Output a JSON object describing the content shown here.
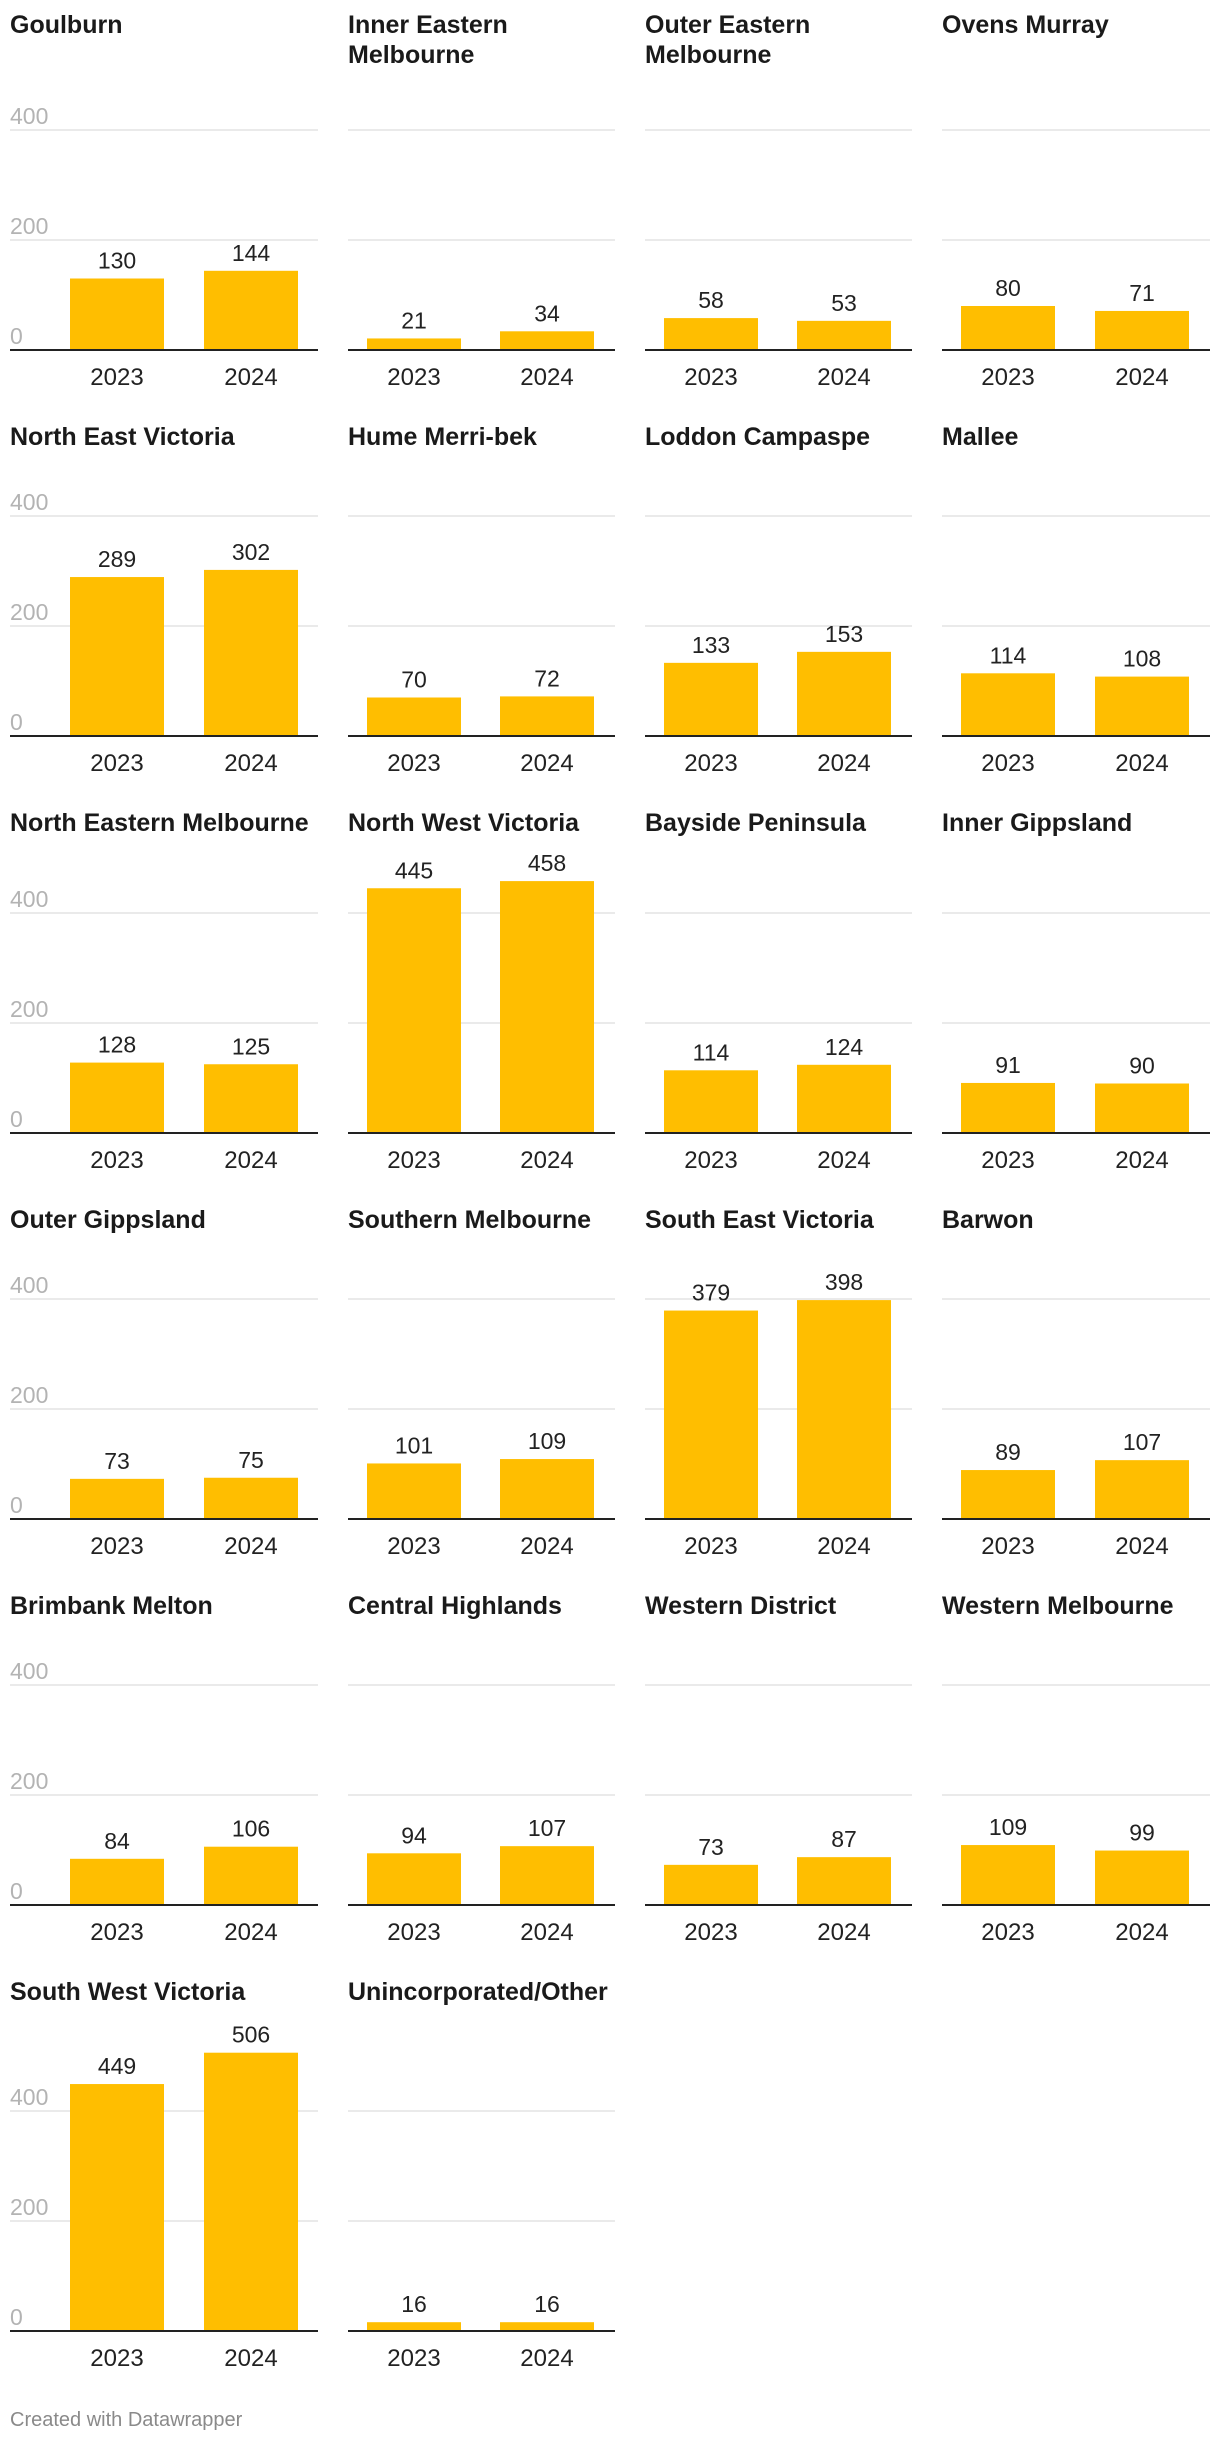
{
  "footer": {
    "credit": "Created with Datawrapper"
  },
  "colors": {
    "bar": "#FFBE00",
    "baseline": "#222222",
    "grid": "#e3e3e3",
    "tick_text": "#b3b3b3"
  },
  "chart_data": {
    "type": "bar",
    "layout": "small-multiples",
    "categories": [
      "2023",
      "2024"
    ],
    "ylim": [
      0,
      460
    ],
    "yticks": [
      0,
      200,
      400
    ],
    "grid": true,
    "panels": [
      {
        "title": "Goulburn",
        "values": [
          130,
          144
        ]
      },
      {
        "title": "Inner Eastern Melbourne",
        "title_lines": [
          "Inner Eastern",
          "Melbourne"
        ],
        "values": [
          21,
          34
        ]
      },
      {
        "title": "Outer Eastern Melbourne",
        "title_lines": [
          "Outer Eastern",
          "Melbourne"
        ],
        "values": [
          58,
          53
        ]
      },
      {
        "title": "Ovens Murray",
        "values": [
          80,
          71
        ]
      },
      {
        "title": "North East Victoria",
        "values": [
          289,
          302
        ]
      },
      {
        "title": "Hume Merri-bek",
        "values": [
          70,
          72
        ]
      },
      {
        "title": "Loddon Campaspe",
        "values": [
          133,
          153
        ]
      },
      {
        "title": "Mallee",
        "values": [
          114,
          108
        ]
      },
      {
        "title": "North Eastern Melbourne",
        "values": [
          128,
          125
        ]
      },
      {
        "title": "North West Victoria",
        "values": [
          445,
          458
        ]
      },
      {
        "title": "Bayside Peninsula",
        "values": [
          114,
          124
        ]
      },
      {
        "title": "Inner Gippsland",
        "values": [
          91,
          90
        ]
      },
      {
        "title": "Outer Gippsland",
        "values": [
          73,
          75
        ]
      },
      {
        "title": "Southern Melbourne",
        "values": [
          101,
          109
        ]
      },
      {
        "title": "South East Victoria",
        "values": [
          379,
          398
        ]
      },
      {
        "title": "Barwon",
        "values": [
          89,
          107
        ]
      },
      {
        "title": "Brimbank Melton",
        "values": [
          84,
          106
        ]
      },
      {
        "title": "Central Highlands",
        "values": [
          94,
          107
        ]
      },
      {
        "title": "Western District",
        "values": [
          73,
          87
        ]
      },
      {
        "title": "Western Melbourne",
        "values": [
          109,
          99
        ]
      },
      {
        "title": "South West Victoria",
        "values": [
          449,
          506
        ]
      },
      {
        "title": "Unincorporated/Other",
        "values": [
          16,
          16
        ]
      }
    ]
  }
}
